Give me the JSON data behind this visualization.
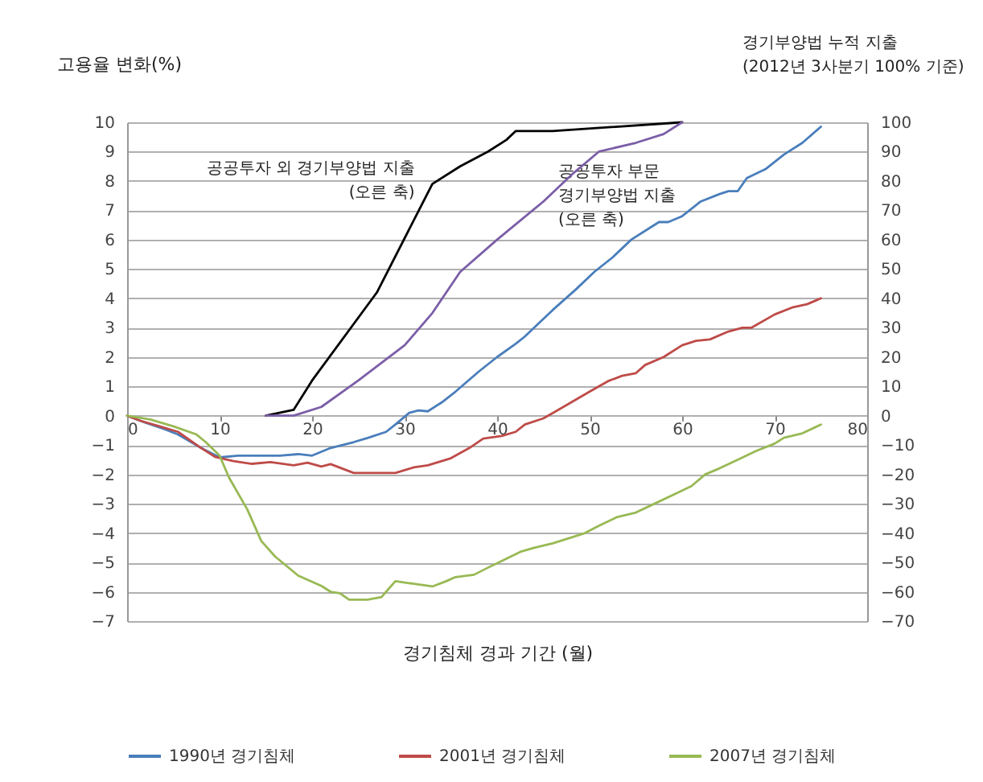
{
  "chart_data": {
    "type": "line",
    "xlabel": "경기침체  경과 기간 (월)",
    "ylabel": "고용율 변화(%)",
    "y2label": "경기부양법 누적 지출\n(2012년 3사분기 100% 기준)",
    "xlim": [
      0,
      80
    ],
    "xticks": [
      0,
      10,
      20,
      30,
      40,
      50,
      60,
      70,
      80
    ],
    "ylim": [
      -7,
      10
    ],
    "yticks": [
      -7,
      -6,
      -5,
      -4,
      -3,
      -2,
      -1,
      0,
      1,
      2,
      3,
      4,
      5,
      6,
      7,
      8,
      9,
      10
    ],
    "y2lim": [
      -70,
      100
    ],
    "y2ticks": [
      -70,
      -60,
      -50,
      -40,
      -30,
      -20,
      -10,
      0,
      10,
      20,
      30,
      40,
      50,
      60,
      70,
      80,
      90,
      100
    ],
    "grid": "y",
    "legend": "bottom",
    "annotations": [
      "공공투자 외 경기부양법 지출\n(오른 축)",
      "공공투자 부문\n경기부양법 지출\n(오른 축)"
    ],
    "series": [
      {
        "name": "1990년 경기침체",
        "color": "#4a7ebb",
        "x": [
          0,
          2,
          4,
          5.5,
          8,
          10,
          12,
          15,
          16.5,
          18.5,
          20,
          22,
          24.5,
          26,
          28,
          29,
          30.5,
          31.5,
          32.5,
          34,
          35.5,
          38,
          40,
          42,
          43,
          44,
          46,
          48.5,
          50.5,
          52.5,
          54.5,
          56.5,
          57.5,
          58.5,
          60,
          62,
          64,
          65,
          66,
          67,
          69,
          71,
          73,
          75
        ],
        "values": [
          0,
          -0.24,
          -0.45,
          -0.64,
          -1.1,
          -1.42,
          -1.36,
          -1.36,
          -1.36,
          -1.31,
          -1.36,
          -1.1,
          -0.9,
          -0.76,
          -0.55,
          -0.3,
          0.1,
          0.18,
          0.15,
          0.45,
          0.82,
          1.5,
          2.0,
          2.45,
          2.7,
          3.0,
          3.6,
          4.3,
          4.9,
          5.4,
          6.0,
          6.4,
          6.6,
          6.6,
          6.8,
          7.3,
          7.55,
          7.65,
          7.65,
          8.1,
          8.4,
          8.9,
          9.3,
          9.85
        ]
      },
      {
        "name": "2001년 경기침체",
        "color": "#be4b48",
        "x": [
          0,
          1.5,
          3.5,
          5.5,
          8,
          9.5,
          11.5,
          13.5,
          15.5,
          18,
          19.5,
          21,
          22,
          24.5,
          27,
          29,
          31,
          32.5,
          35,
          37,
          38.5,
          40.5,
          42,
          43,
          45,
          46,
          47.5,
          50,
          52,
          53.5,
          55,
          56,
          58,
          60,
          61.5,
          63,
          65,
          66.5,
          67.5,
          70,
          72,
          73.5,
          75
        ],
        "values": [
          0,
          -0.18,
          -0.36,
          -0.55,
          -1.1,
          -1.4,
          -1.55,
          -1.64,
          -1.58,
          -1.69,
          -1.6,
          -1.73,
          -1.65,
          -1.95,
          -1.95,
          -1.95,
          -1.76,
          -1.69,
          -1.45,
          -1.1,
          -0.78,
          -0.69,
          -0.55,
          -0.3,
          -0.09,
          0.09,
          0.36,
          0.82,
          1.18,
          1.36,
          1.45,
          1.73,
          2.0,
          2.4,
          2.55,
          2.6,
          2.87,
          3.0,
          3.0,
          3.45,
          3.7,
          3.8,
          4.0
        ]
      },
      {
        "name": "2007년 경기침체",
        "color": "#98b954",
        "x": [
          0,
          2.5,
          5,
          7.5,
          8.5,
          10,
          11,
          13,
          14.5,
          16,
          18.5,
          21,
          22,
          23,
          24,
          26,
          27.5,
          28,
          29,
          31,
          33,
          34.5,
          35.5,
          37.5,
          39,
          40.5,
          42.5,
          44,
          46,
          48,
          49.5,
          51,
          53,
          55,
          57,
          59,
          61,
          62.5,
          64,
          66,
          68,
          70,
          71,
          73,
          75
        ],
        "values": [
          0,
          -0.13,
          -0.36,
          -0.64,
          -0.9,
          -1.36,
          -2.1,
          -3.2,
          -4.27,
          -4.8,
          -5.45,
          -5.8,
          -6.0,
          -6.05,
          -6.27,
          -6.27,
          -6.18,
          -6.0,
          -5.64,
          -5.73,
          -5.82,
          -5.64,
          -5.5,
          -5.42,
          -5.18,
          -4.95,
          -4.64,
          -4.5,
          -4.35,
          -4.15,
          -4.0,
          -3.75,
          -3.45,
          -3.3,
          -3.0,
          -2.7,
          -2.4,
          -2.0,
          -1.8,
          -1.5,
          -1.2,
          -0.95,
          -0.75,
          -0.6,
          -0.3
        ]
      },
      {
        "color": "#000000",
        "axis": "y2",
        "x": [
          15,
          18,
          20,
          27,
          33,
          36,
          39,
          41,
          42,
          46,
          60
        ],
        "values": [
          0,
          2,
          12,
          42,
          79,
          85,
          90,
          94,
          97,
          97,
          100
        ]
      },
      {
        "color": "#7b5ea7",
        "axis": "y2",
        "x": [
          15,
          18,
          21,
          25,
          30,
          33,
          36,
          40,
          45,
          48,
          51,
          55,
          58,
          60
        ],
        "values": [
          0,
          0,
          3,
          12,
          24,
          35,
          49,
          60,
          73,
          82,
          90,
          93,
          96,
          100
        ]
      }
    ]
  }
}
